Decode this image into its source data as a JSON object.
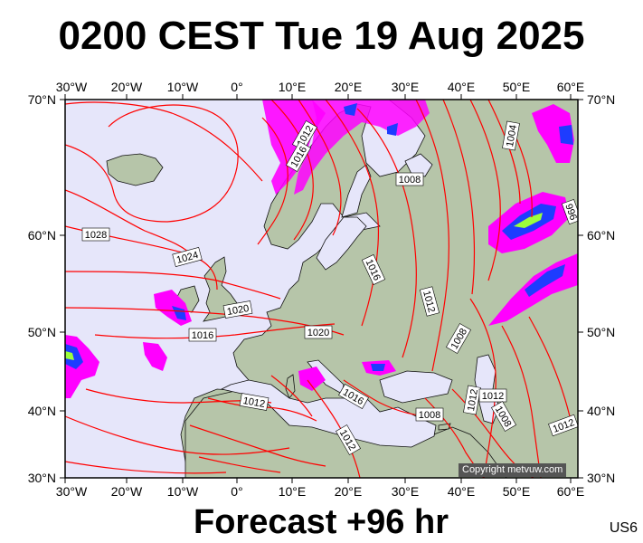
{
  "title": "0200 CEST Tue 19 Aug 2025",
  "subtitle": "Forecast +96 hr",
  "code": "US6",
  "copyright": "Copyright metvuw.com",
  "axes": {
    "lon_ticks": [
      "30°W",
      "20°W",
      "10°W",
      "0°",
      "10°E",
      "20°E",
      "30°E",
      "40°E",
      "50°E",
      "60°E"
    ],
    "lat_ticks": [
      "70°N",
      "60°N",
      "50°N",
      "40°N",
      "30°N"
    ]
  },
  "isobar_labels": [
    "1012",
    "1016",
    "1028",
    "1024",
    "1020",
    "1016",
    "1020",
    "1008",
    "1016",
    "1012",
    "1008",
    "1004",
    "1012",
    "1016",
    "1008",
    "1012",
    "1012",
    "1008",
    "1012",
    "1012",
    "996"
  ],
  "colors": {
    "sea": "#e6e6fa",
    "land": "#b5c4a8",
    "isobar": "#ff0000",
    "precip_heavy": "#ff00ff",
    "precip_core": "#1e3cff",
    "precip_center": "#9cff3c",
    "frame": "#000000"
  }
}
